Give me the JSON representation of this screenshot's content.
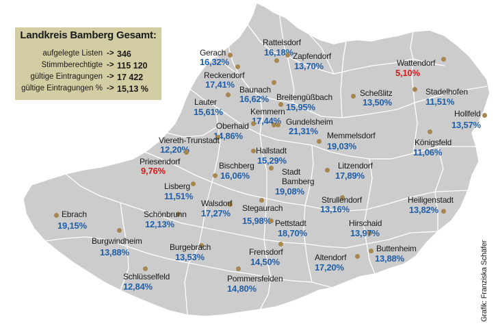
{
  "summary": {
    "title": "Landkreis Bamberg Gesamt:",
    "arrow": "->",
    "rows": [
      {
        "label": "aufgelegte Listen",
        "value": "346"
      },
      {
        "label": "Stimmberechtigte",
        "value": "115 120"
      },
      {
        "label": "gültige Eintragungen",
        "value": "17 422"
      },
      {
        "label": "gültige Eintragungen %",
        "value": "15,13 %"
      }
    ]
  },
  "places": [
    {
      "name": "Rattelsdorf",
      "pct": "16,18%",
      "color": "#1f5ea8"
    },
    {
      "name": "Gerach",
      "pct": "16,32%",
      "color": "#1f5ea8"
    },
    {
      "name": "Reckendorf",
      "pct": "17,41%",
      "color": "#1f5ea8"
    },
    {
      "name": "Zapfendorf",
      "pct": "13,70%",
      "color": "#1f5ea8"
    },
    {
      "name": "Wattendorf",
      "pct": "5,10%",
      "color": "#d11a1a"
    },
    {
      "name": "Baunach",
      "pct": "16,62%",
      "color": "#1f5ea8"
    },
    {
      "name": "Lauter",
      "pct": "15,61%",
      "color": "#1f5ea8"
    },
    {
      "name": "Breitengüßbach",
      "pct": "15,95%",
      "color": "#1f5ea8"
    },
    {
      "name": "Scheßlitz",
      "pct": "13,50%",
      "color": "#1f5ea8"
    },
    {
      "name": "Stadelhofen",
      "pct": "11,51%",
      "color": "#1f5ea8"
    },
    {
      "name": "Kemmern",
      "pct": "17,44%",
      "color": "#1f5ea8"
    },
    {
      "name": "Hollfeld",
      "pct": "13,57%",
      "color": "#1f5ea8"
    },
    {
      "name": "Oberhaid",
      "pct": "14,86%",
      "color": "#1f5ea8"
    },
    {
      "name": "Gundelsheim",
      "pct": "21,31%",
      "color": "#1f5ea8"
    },
    {
      "name": "Memmelsdorf",
      "pct": "19,03%",
      "color": "#1f5ea8"
    },
    {
      "name": "Viereth-Trunstadt",
      "pct": "12,20%",
      "color": "#1f5ea8"
    },
    {
      "name": "Königsfeld",
      "pct": "11,06%",
      "color": "#1f5ea8"
    },
    {
      "name": "Hallstadt",
      "pct": "15,29%",
      "color": "#1f5ea8"
    },
    {
      "name": "Priesendorf",
      "pct": "9,76%",
      "color": "#d11a1a"
    },
    {
      "name": "Bischberg",
      "pct": "16,06%",
      "color": "#1f5ea8"
    },
    {
      "name": "Stadt\nBamberg",
      "pct": "19,08%",
      "color": "#1f5ea8"
    },
    {
      "name": "Litzendorf",
      "pct": "17,89%",
      "color": "#1f5ea8"
    },
    {
      "name": "Lisberg",
      "pct": "11,51%",
      "color": "#1f5ea8"
    },
    {
      "name": "Ebrach",
      "pct": "19,15%",
      "color": "#1f5ea8"
    },
    {
      "name": "Walsdorf",
      "pct": "17,27%",
      "color": "#1f5ea8"
    },
    {
      "name": "Stegaurach",
      "pct": "15,98%",
      "color": "#1f5ea8"
    },
    {
      "name": "Strullendorf",
      "pct": "13,16%",
      "color": "#1f5ea8"
    },
    {
      "name": "Heiligenstadt",
      "pct": "13,82%",
      "color": "#1f5ea8"
    },
    {
      "name": "Schönbrunn",
      "pct": "12,13%",
      "color": "#1f5ea8"
    },
    {
      "name": "Pettstadt",
      "pct": "18,70%",
      "color": "#1f5ea8"
    },
    {
      "name": "Hirschaid",
      "pct": "13,97%",
      "color": "#1f5ea8"
    },
    {
      "name": "Burgwindheim",
      "pct": "13,88%",
      "color": "#1f5ea8"
    },
    {
      "name": "Burgebrach",
      "pct": "13,53%",
      "color": "#1f5ea8"
    },
    {
      "name": "Buttenheim",
      "pct": "13,88%",
      "color": "#1f5ea8"
    },
    {
      "name": "Frensdorf",
      "pct": "14,50%",
      "color": "#1f5ea8"
    },
    {
      "name": "Altendorf",
      "pct": "17,20%",
      "color": "#1f5ea8"
    },
    {
      "name": "Schlüsselfeld",
      "pct": "12,84%",
      "color": "#1f5ea8"
    },
    {
      "name": "Pommersfelden",
      "pct": "14,80%",
      "color": "#1f5ea8"
    }
  ],
  "credit": "Grafik: Franziska Schäfer",
  "colors": {
    "land": "#cccccc",
    "border": "#ffffff",
    "marker": "#a8874f",
    "summary_bg": "#d2cda2"
  }
}
